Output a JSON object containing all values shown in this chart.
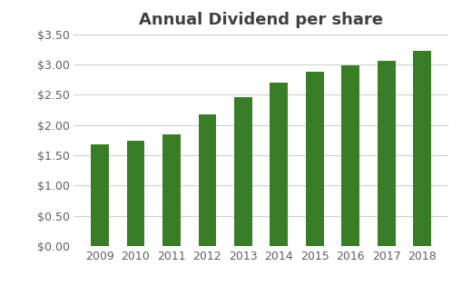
{
  "title": "Annual Dividend per share",
  "years": [
    "2009",
    "2010",
    "2011",
    "2012",
    "2013",
    "2014",
    "2015",
    "2016",
    "2017",
    "2018"
  ],
  "values": [
    1.68,
    1.74,
    1.85,
    2.18,
    2.46,
    2.7,
    2.88,
    2.98,
    3.06,
    3.23
  ],
  "bar_color": "#3a7d27",
  "background_color": "#ffffff",
  "ylim": [
    0,
    3.5
  ],
  "yticks": [
    0.0,
    0.5,
    1.0,
    1.5,
    2.0,
    2.5,
    3.0,
    3.5
  ],
  "title_fontsize": 13,
  "tick_fontsize": 9,
  "title_color": "#404040",
  "tick_color": "#606060",
  "grid_color": "#d0d0d0",
  "bar_width": 0.5,
  "figsize": [
    5.09,
    3.15
  ],
  "dpi": 100
}
